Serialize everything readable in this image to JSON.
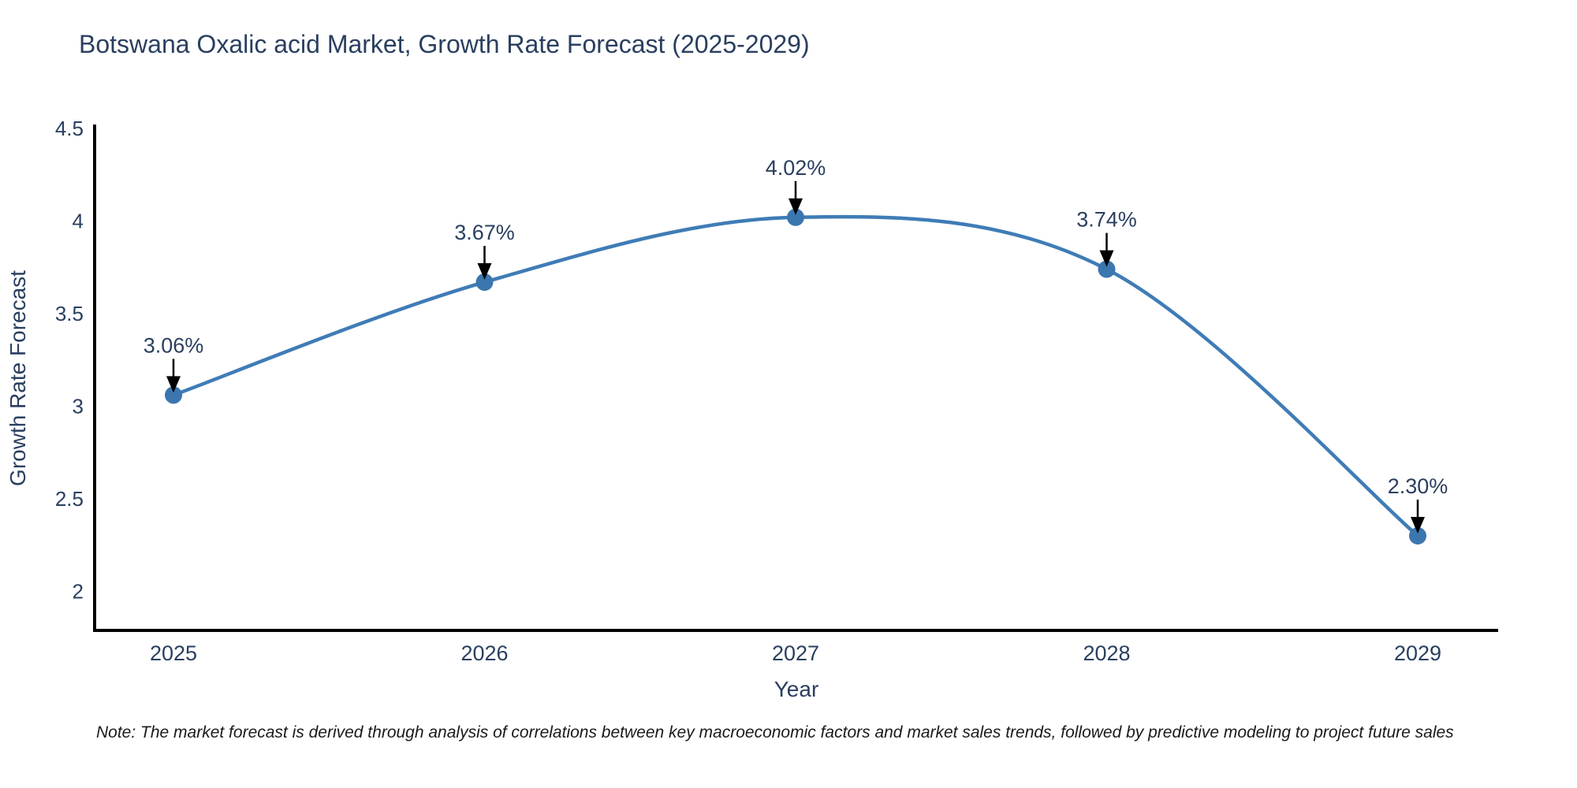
{
  "title": "Botswana Oxalic acid Market, Growth Rate Forecast (2025-2029)",
  "note": "Note: The market forecast is derived through analysis of correlations between key macroeconomic factors and market sales trends, followed by predictive modeling to project future sales",
  "chart_data": {
    "type": "line",
    "title": "Botswana Oxalic acid Market, Growth Rate Forecast (2025-2029)",
    "xlabel": "Year",
    "ylabel": "Growth Rate Forecast",
    "categories": [
      "2025",
      "2026",
      "2027",
      "2028",
      "2029"
    ],
    "values": [
      3.06,
      3.67,
      4.02,
      3.74,
      2.3
    ],
    "point_labels": [
      "3.06%",
      "3.67%",
      "4.02%",
      "3.74%",
      "2.30%"
    ],
    "yticks": [
      2,
      2.5,
      3,
      3.5,
      4,
      4.5
    ],
    "ylim": [
      1.79,
      4.5
    ],
    "line_shape": "spline",
    "grid": false,
    "legend_position": "none",
    "line_color": "#3f7cb6",
    "marker_color": "#3b76af",
    "axis_color": "#000000",
    "text_color": "#2a3f5f",
    "annotation_arrow_color": "#000000"
  }
}
